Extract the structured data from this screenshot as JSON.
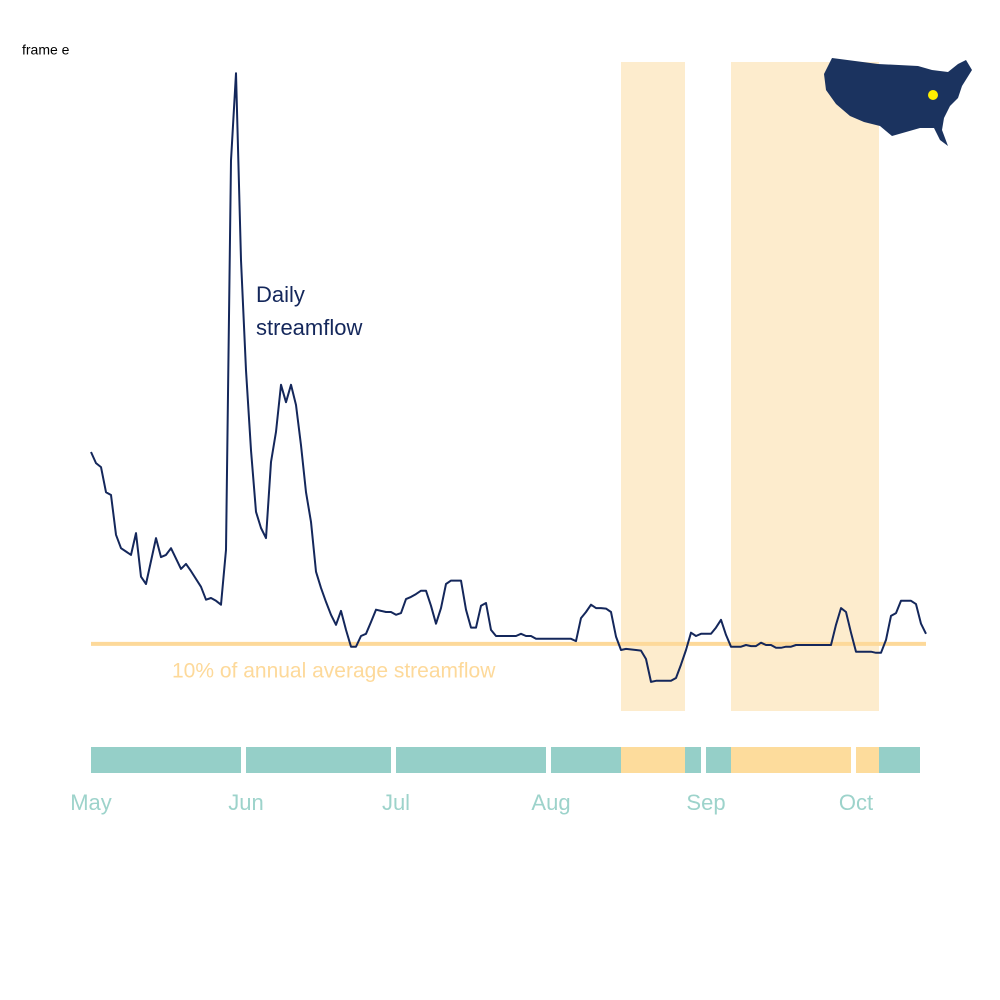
{
  "frame_label": "frame e",
  "chart_data": {
    "type": "line",
    "x": [
      0,
      1,
      2,
      3,
      4,
      5,
      6,
      8,
      9,
      10,
      11,
      13,
      14,
      15,
      16,
      18,
      19,
      20,
      22,
      23,
      24,
      25,
      26,
      27,
      28,
      29,
      30,
      31,
      32,
      33,
      34,
      35,
      36,
      37,
      38,
      39,
      40,
      41,
      42,
      43,
      44,
      45,
      46,
      47,
      48,
      49,
      50,
      51,
      52,
      53,
      54,
      55,
      56,
      57,
      58,
      59,
      60,
      61,
      62,
      63,
      64,
      65,
      66,
      67,
      68,
      69,
      70,
      71,
      72,
      73,
      74,
      75,
      76,
      77,
      78,
      79,
      80,
      81,
      82,
      83,
      84,
      85,
      86,
      87,
      88,
      89,
      90,
      91,
      92,
      93,
      94,
      95,
      96,
      97,
      98,
      99,
      100,
      101,
      102,
      103,
      104,
      105,
      106,
      107,
      109,
      110,
      111,
      112,
      113,
      114,
      115,
      116,
      117,
      118,
      119,
      120,
      121,
      122,
      123,
      124,
      125,
      126,
      127,
      128,
      129,
      130,
      131,
      132,
      133,
      134,
      135,
      136,
      137,
      138,
      139,
      140,
      141,
      142,
      143,
      144,
      145,
      146,
      147,
      148,
      149,
      150,
      151,
      152,
      153,
      154,
      155,
      156,
      157,
      158,
      159,
      160,
      161,
      162,
      163,
      164,
      165,
      166,
      167
    ],
    "series": [
      {
        "name": "Daily streamflow",
        "label_lines": [
          "Daily",
          "streamflow"
        ],
        "color": "#14275b",
        "values": [
          44.3,
          42.3,
          41.6,
          37.1,
          36.6,
          29.5,
          27.1,
          25.9,
          29.8,
          22.0,
          20.7,
          28.9,
          25.5,
          25.9,
          27.1,
          23.4,
          24.3,
          23.0,
          20.2,
          17.9,
          18.2,
          17.7,
          17.0,
          26.8,
          96.4,
          112.0,
          78.6,
          58.9,
          44.6,
          33.6,
          30.7,
          28.9,
          42.5,
          47.9,
          56.3,
          53.2,
          56.3,
          52.7,
          45.5,
          37.1,
          31.8,
          22.9,
          20.0,
          17.5,
          15.2,
          13.4,
          15.9,
          12.5,
          9.5,
          9.5,
          11.4,
          11.8,
          13.9,
          16.1,
          15.9,
          15.7,
          15.7,
          15.2,
          15.5,
          18.0,
          18.4,
          18.9,
          19.5,
          19.5,
          16.8,
          13.6,
          16.4,
          20.7,
          21.3,
          21.3,
          21.3,
          16.1,
          12.9,
          12.9,
          16.8,
          17.3,
          12.5,
          11.4,
          11.4,
          11.4,
          11.4,
          11.4,
          11.8,
          11.4,
          11.4,
          10.9,
          10.9,
          10.9,
          10.9,
          10.9,
          10.9,
          10.9,
          10.9,
          10.5,
          14.6,
          15.7,
          17.0,
          16.4,
          16.4,
          16.3,
          15.7,
          11.3,
          8.9,
          9.1,
          8.9,
          8.8,
          7.3,
          3.2,
          3.4,
          3.4,
          3.4,
          3.4,
          3.9,
          6.3,
          8.9,
          12.0,
          11.4,
          11.8,
          11.8,
          11.8,
          12.9,
          14.3,
          11.6,
          9.5,
          9.5,
          9.5,
          9.8,
          9.6,
          9.6,
          10.2,
          9.8,
          9.8,
          9.3,
          9.3,
          9.5,
          9.5,
          9.8,
          9.8,
          9.8,
          9.8,
          9.8,
          9.8,
          9.8,
          9.8,
          13.4,
          16.4,
          15.7,
          12.0,
          8.6,
          8.6,
          8.6,
          8.6,
          8.4,
          8.4,
          10.7,
          15.0,
          15.5,
          17.7,
          17.7,
          17.7,
          17.1,
          13.6,
          11.8
        ]
      }
    ],
    "threshold": {
      "value": 10,
      "label": "10% of annual average streamflow",
      "color": "#fdd99a"
    },
    "shaded_periods": [
      [
        106,
        118.8
      ],
      [
        128,
        157.6
      ]
    ],
    "shade_color": "#fdeccd",
    "status_bar": {
      "end": 165.8,
      "normal_color": "#95cfc8",
      "drought_color": "#fddc9c"
    },
    "xlim": [
      0,
      167
    ],
    "ylim": [
      -2,
      114
    ],
    "xticks": [
      {
        "value": 0,
        "label": "May"
      },
      {
        "value": 31,
        "label": "Jun"
      },
      {
        "value": 61,
        "label": "Jul"
      },
      {
        "value": 92,
        "label": "Aug"
      },
      {
        "value": 123,
        "label": "Sep"
      },
      {
        "value": 153,
        "label": "Oct"
      }
    ],
    "tick_color": "#9dd3cb"
  }
}
